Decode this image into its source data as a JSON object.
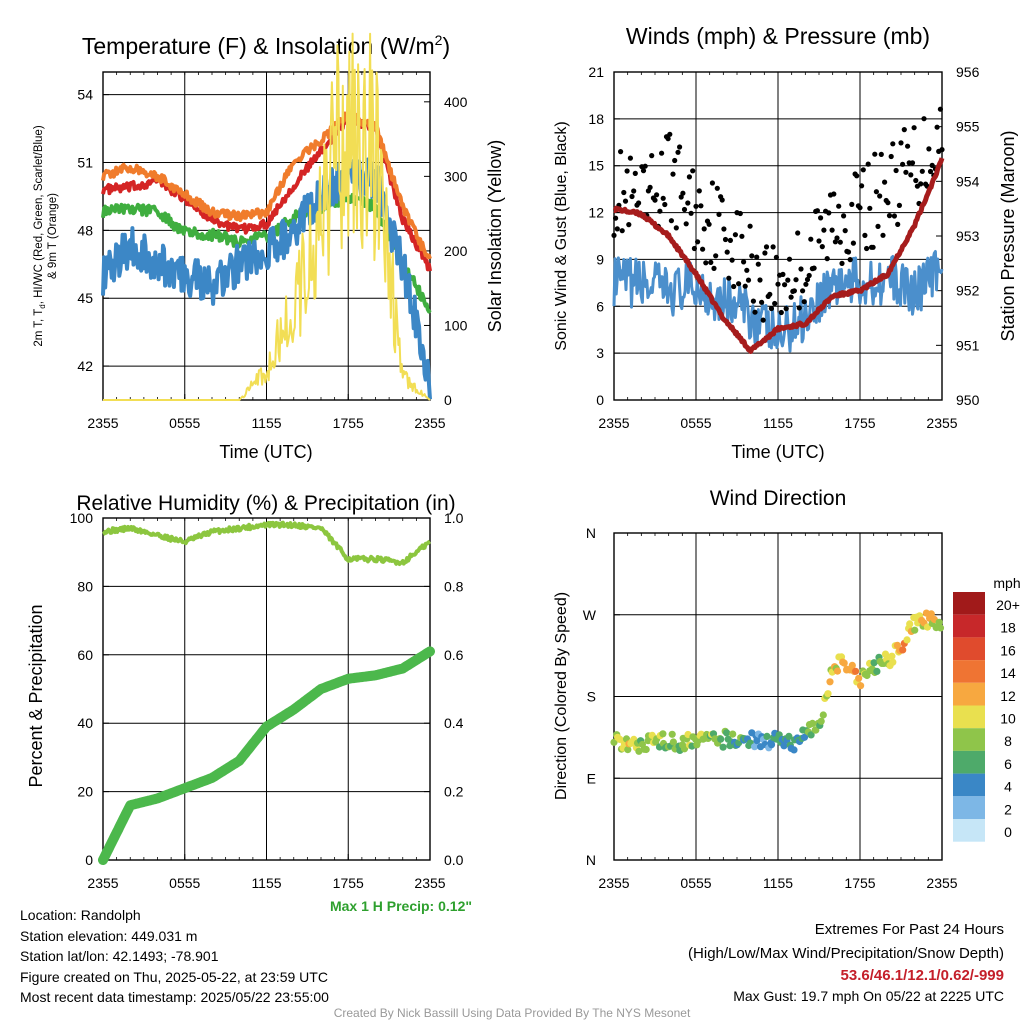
{
  "panels": {
    "temp": {
      "title": "Temperature (F) & Insolation (W/m",
      "title_sup": "2",
      "title_close": ")",
      "ylabel_line1": "2m T, T",
      "ylabel_sub": "d",
      "ylabel_line1_rest": ", HI/WC (Red, Green, Scarlet/Blue)",
      "ylabel_line2": "& 9m T (Orange)",
      "ylabel_right": "Solar Insolation (Yellow)",
      "xlabel": "Time (UTC)"
    },
    "wind": {
      "title": "Winds (mph) & Pressure (mb)",
      "ylabel_left": "Sonic Wind & Gust (Blue, Black)",
      "ylabel_right": "Station Pressure (Maroon)",
      "xlabel": "Time (UTC)"
    },
    "rh": {
      "title": "Relative Humidity (%) & Precipitation (in)",
      "ylabel_left": "Percent & Precipitation",
      "max_precip": "Max 1 H Precip: 0.12\""
    },
    "dir": {
      "title": "Wind Direction",
      "ylabel_left": "Direction (Colored By Speed)",
      "legend_title": "mph",
      "legend_labels": [
        "20+",
        "18",
        "16",
        "14",
        "12",
        "10",
        "8",
        "6",
        "4",
        "2",
        "0"
      ],
      "legend_colors": [
        "#a11a1a",
        "#c7282a",
        "#e04b2d",
        "#ef7433",
        "#f7a840",
        "#e9e04f",
        "#8fc54a",
        "#4eaa6a",
        "#3a87c6",
        "#7db7e6",
        "#c6e6f7"
      ]
    }
  },
  "info": {
    "location": "Location: Randolph",
    "elevation": "Station elevation: 449.031 m",
    "latlon": "Station lat/lon: 42.1493; -78.901",
    "created": "Figure created on Thu, 2025-05-22, at 23:59 UTC",
    "recent": "Most recent data timestamp: 2025/05/22 23:55:00"
  },
  "extremes": {
    "title": "Extremes For Past 24 Hours",
    "subtitle": "(High/Low/Max Wind/Precipitation/Snow Depth)",
    "values": "53.6/46.1/12.1/0.62/-999",
    "gust": "Max Gust: 19.7 mph On 05/22 at 2225 UTC"
  },
  "credit": "Created By Nick Bassill Using Data Provided By The NYS Mesonet",
  "chart_data": [
    {
      "type": "line",
      "title": "Temperature (F) & Insolation (W/m2)",
      "xlabel": "Time (UTC)",
      "x_ticks": [
        "2355",
        "0555",
        "1155",
        "1755",
        "2355"
      ],
      "x_hours": [
        0,
        2,
        4,
        6,
        8,
        10,
        12,
        14,
        16,
        18,
        20,
        22,
        24
      ],
      "ylim": [
        40.5,
        55
      ],
      "y_ticks": [
        42,
        45,
        48,
        51,
        54
      ],
      "y2lim": [
        0,
        440
      ],
      "y2_ticks": [
        0,
        100,
        200,
        300,
        400
      ],
      "series": [
        {
          "name": "T",
          "axis": "left",
          "color": "#d42424",
          "values": [
            49.8,
            49.9,
            50.2,
            49.4,
            48.5,
            48.0,
            48.3,
            50.0,
            51.5,
            53.0,
            52.5,
            48.5,
            46.3
          ]
        },
        {
          "name": "9m T",
          "axis": "left",
          "color": "#f07c2c",
          "values": [
            50.4,
            50.8,
            50.4,
            49.6,
            48.8,
            48.6,
            48.8,
            51.0,
            52.0,
            53.1,
            52.6,
            49.0,
            46.6
          ]
        },
        {
          "name": "Td",
          "axis": "left",
          "color": "#3fae3f",
          "values": [
            48.8,
            49.0,
            48.8,
            47.9,
            47.8,
            47.5,
            47.7,
            48.6,
            49.0,
            49.5,
            49.0,
            46.5,
            44.5
          ]
        },
        {
          "name": "HI/WC",
          "axis": "left",
          "color": "#3c87c6",
          "values": [
            46.0,
            47.3,
            46.6,
            46.0,
            45.6,
            46.5,
            47.0,
            48.0,
            49.6,
            50.4,
            50.2,
            46.5,
            41.3
          ]
        },
        {
          "name": "Insolation",
          "axis": "right",
          "color": "#f2de55",
          "values": [
            0,
            0,
            0,
            0,
            0,
            0,
            40,
            130,
            230,
            400,
            330,
            30,
            0
          ]
        }
      ]
    },
    {
      "type": "line",
      "title": "Winds (mph) & Pressure (mb)",
      "xlabel": "Time (UTC)",
      "x_ticks": [
        "2355",
        "0555",
        "1155",
        "1755",
        "2355"
      ],
      "x_hours": [
        0,
        2,
        4,
        6,
        8,
        10,
        12,
        14,
        16,
        18,
        20,
        22,
        24
      ],
      "ylim": [
        0,
        21
      ],
      "y_ticks": [
        0,
        3,
        6,
        9,
        12,
        15,
        18,
        21
      ],
      "y2lim": [
        950,
        956
      ],
      "y2_ticks": [
        950,
        951,
        952,
        953,
        954,
        955,
        956
      ],
      "series": [
        {
          "name": "Sonic Wind",
          "axis": "left",
          "color": "#4b8fcc",
          "values": [
            7.5,
            7.5,
            7.0,
            7.2,
            6.5,
            5.5,
            4.0,
            5.5,
            7.5,
            7.5,
            7.8,
            7.0,
            8.5
          ]
        },
        {
          "name": "Gust",
          "axis": "left",
          "color": "#000000",
          "values": [
            13.5,
            12.0,
            14.5,
            12.0,
            11.0,
            8.5,
            7.5,
            8.5,
            11.5,
            12.0,
            13.5,
            15.0,
            17.0
          ]
        },
        {
          "name": "Station Pressure",
          "axis": "right",
          "color": "#a61c1c",
          "values": [
            953.5,
            953.4,
            953.0,
            952.3,
            951.5,
            950.9,
            951.3,
            951.4,
            951.9,
            952.0,
            952.3,
            953.2,
            954.4
          ]
        }
      ]
    },
    {
      "type": "line",
      "title": "Relative Humidity (%) & Precipitation (in)",
      "x_ticks": [
        "2355",
        "0555",
        "1155",
        "1755",
        "2355"
      ],
      "x_hours": [
        0,
        2,
        4,
        6,
        8,
        10,
        12,
        14,
        16,
        18,
        20,
        22,
        24
      ],
      "ylim": [
        0,
        100
      ],
      "y_ticks": [
        0,
        20,
        40,
        60,
        80,
        100
      ],
      "y2lim": [
        0,
        1.0
      ],
      "y2_ticks": [
        "0.0",
        "0.2",
        "0.4",
        "0.6",
        "0.8",
        "1.0"
      ],
      "series": [
        {
          "name": "Relative Humidity",
          "axis": "left",
          "color": "#8cc63f",
          "values": [
            96,
            97,
            95,
            93,
            96,
            97,
            98,
            98,
            97,
            88,
            88,
            87,
            93
          ]
        },
        {
          "name": "Precipitation",
          "axis": "right",
          "color": "#4cb84c",
          "values": [
            0,
            0.16,
            0.18,
            0.21,
            0.24,
            0.29,
            0.39,
            0.44,
            0.5,
            0.53,
            0.54,
            0.56,
            0.61
          ]
        }
      ]
    },
    {
      "type": "scatter",
      "title": "Wind Direction",
      "x_ticks": [
        "2355",
        "0555",
        "1155",
        "1755",
        "2355"
      ],
      "y_ticks": [
        "N",
        "E",
        "S",
        "W",
        "N"
      ],
      "ylim": [
        0,
        360
      ],
      "x_hours": [
        0,
        1,
        2,
        3,
        4,
        5,
        6,
        7,
        8,
        9,
        10,
        11,
        12,
        13,
        14,
        15,
        16,
        17,
        18,
        19,
        20,
        21,
        22,
        23,
        24
      ],
      "directions": [
        132,
        130,
        127,
        130,
        133,
        128,
        132,
        131,
        133,
        135,
        134,
        130,
        135,
        126,
        138,
        147,
        215,
        216,
        200,
        215,
        220,
        235,
        260,
        265,
        260
      ],
      "speeds": [
        9,
        10,
        8,
        9,
        7,
        8,
        9,
        7,
        8,
        6,
        5,
        3,
        6,
        4,
        6,
        7,
        10,
        12,
        11,
        8,
        9,
        12,
        10,
        11,
        9
      ]
    }
  ]
}
